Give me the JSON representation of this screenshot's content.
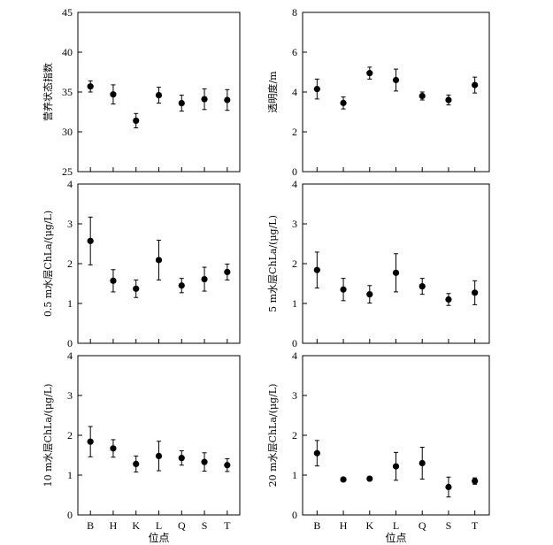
{
  "chart_data": [
    {
      "type": "scatter",
      "ylabel": "营养状态指数",
      "xlabel": "",
      "ylim": [
        25,
        45
      ],
      "yticks": [
        25,
        30,
        35,
        40,
        45
      ],
      "categories": [
        "B",
        "H",
        "K",
        "L",
        "Q",
        "S",
        "T"
      ],
      "values": [
        35.7,
        34.7,
        31.4,
        34.6,
        33.6,
        34.1,
        34.0
      ],
      "err_low": [
        0.7,
        1.2,
        0.9,
        1.0,
        1.0,
        1.3,
        1.3
      ],
      "err_high": [
        0.7,
        1.2,
        0.9,
        1.0,
        1.0,
        1.3,
        1.3
      ],
      "show_x_ticklabels": false
    },
    {
      "type": "scatter",
      "ylabel": "透明度/m",
      "xlabel": "",
      "ylim": [
        0,
        8
      ],
      "yticks": [
        0,
        2,
        4,
        6,
        8
      ],
      "categories": [
        "B",
        "H",
        "K",
        "L",
        "Q",
        "S",
        "T"
      ],
      "values": [
        4.15,
        3.45,
        4.95,
        4.6,
        3.8,
        3.6,
        4.35
      ],
      "err_low": [
        0.5,
        0.3,
        0.3,
        0.55,
        0.2,
        0.25,
        0.4
      ],
      "err_high": [
        0.5,
        0.3,
        0.3,
        0.55,
        0.2,
        0.25,
        0.4
      ],
      "show_x_ticklabels": false
    },
    {
      "type": "scatter",
      "ylabel": "0.5 m水层ChLa/(μg/L)",
      "xlabel": "",
      "ylim": [
        0,
        4
      ],
      "yticks": [
        0,
        1,
        2,
        3,
        4
      ],
      "categories": [
        "B",
        "H",
        "K",
        "L",
        "Q",
        "S",
        "T"
      ],
      "values": [
        2.57,
        1.57,
        1.37,
        2.09,
        1.45,
        1.61,
        1.79
      ],
      "err_low": [
        0.6,
        0.28,
        0.22,
        0.5,
        0.18,
        0.3,
        0.2
      ],
      "err_high": [
        0.6,
        0.28,
        0.22,
        0.5,
        0.18,
        0.3,
        0.2
      ],
      "show_x_ticklabels": false
    },
    {
      "type": "scatter",
      "ylabel": "5 m水层ChLa/(μg/L)",
      "xlabel": "",
      "ylim": [
        0,
        4
      ],
      "yticks": [
        0,
        1,
        2,
        3,
        4
      ],
      "categories": [
        "B",
        "H",
        "K",
        "L",
        "Q",
        "S",
        "T"
      ],
      "values": [
        1.84,
        1.35,
        1.23,
        1.77,
        1.43,
        1.1,
        1.27
      ],
      "err_low": [
        0.45,
        0.28,
        0.22,
        0.48,
        0.2,
        0.15,
        0.3
      ],
      "err_high": [
        0.45,
        0.28,
        0.22,
        0.48,
        0.2,
        0.15,
        0.3
      ],
      "show_x_ticklabels": false
    },
    {
      "type": "scatter",
      "ylabel": "10 m水层ChLa/(μg/L)",
      "xlabel": "位点",
      "ylim": [
        0,
        4
      ],
      "yticks": [
        0,
        1,
        2,
        3,
        4
      ],
      "categories": [
        "B",
        "H",
        "K",
        "L",
        "Q",
        "S",
        "T"
      ],
      "values": [
        1.84,
        1.67,
        1.28,
        1.48,
        1.43,
        1.33,
        1.25
      ],
      "err_low": [
        0.38,
        0.22,
        0.2,
        0.37,
        0.18,
        0.23,
        0.16
      ],
      "err_high": [
        0.38,
        0.22,
        0.2,
        0.37,
        0.18,
        0.23,
        0.16
      ],
      "show_x_ticklabels": true
    },
    {
      "type": "scatter",
      "ylabel": "20 m水层ChLa/(μg/L)",
      "xlabel": "位点",
      "ylim": [
        0,
        4
      ],
      "yticks": [
        0,
        1,
        2,
        3,
        4
      ],
      "categories": [
        "B",
        "H",
        "K",
        "L",
        "Q",
        "S",
        "T"
      ],
      "values": [
        1.55,
        0.89,
        0.91,
        1.22,
        1.3,
        0.7,
        0.85
      ],
      "err_low": [
        0.32,
        0.0,
        0.0,
        0.35,
        0.4,
        0.25,
        0.08
      ],
      "err_high": [
        0.32,
        0.0,
        0.0,
        0.35,
        0.4,
        0.25,
        0.08
      ],
      "show_x_ticklabels": true
    }
  ]
}
